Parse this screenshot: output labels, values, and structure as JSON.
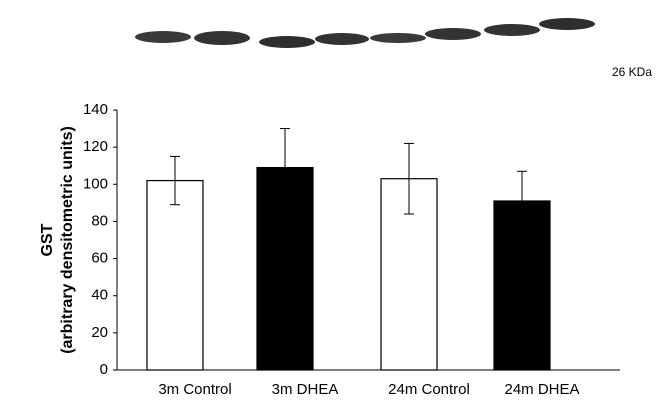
{
  "chart_data": {
    "type": "bar",
    "annotation": "26 KDa",
    "ylabel": [
      "GST",
      "(arbitrary densitometric units)"
    ],
    "categories": [
      "3m Control",
      "3m DHEA",
      "24m Control",
      "24m DHEA"
    ],
    "values": [
      102,
      109,
      103,
      91
    ],
    "errors": [
      13,
      21,
      19,
      16
    ],
    "colors": [
      "#ffffff",
      "#000000",
      "#ffffff",
      "#000000"
    ],
    "ylim": [
      0,
      140
    ],
    "yticks": [
      0,
      20,
      40,
      60,
      80,
      100,
      120,
      140
    ],
    "grid": false
  }
}
